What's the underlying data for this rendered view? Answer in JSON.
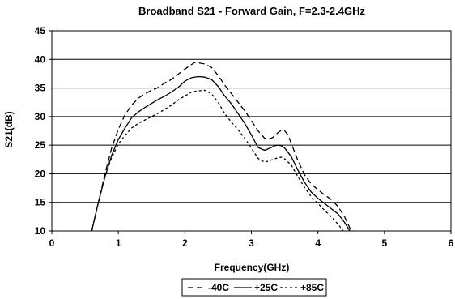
{
  "chart_data": {
    "type": "line",
    "title": "Broadband S21 - Forward Gain, F=2.3-2.4GHz",
    "xlabel": "Frequency(GHz)",
    "ylabel": "S21(dB)",
    "xlim": [
      0,
      6
    ],
    "ylim": [
      10,
      45
    ],
    "x_ticks": [
      "0",
      "1",
      "2",
      "3",
      "4",
      "5",
      "6"
    ],
    "y_ticks": [
      "10",
      "15",
      "20",
      "25",
      "30",
      "35",
      "40",
      "45"
    ],
    "grid": "horizontal",
    "legend_position": "bottom",
    "series": [
      {
        "name": "-40C",
        "line_style": "long-dash",
        "x": [
          0.6,
          0.7,
          0.8,
          0.9,
          1.0,
          1.1,
          1.2,
          1.3,
          1.4,
          1.5,
          1.6,
          1.7,
          1.8,
          1.9,
          2.0,
          2.1,
          2.15,
          2.2,
          2.3,
          2.4,
          2.5,
          2.6,
          2.7,
          2.8,
          2.9,
          3.0,
          3.1,
          3.2,
          3.3,
          3.35,
          3.4,
          3.45,
          3.5,
          3.55,
          3.6,
          3.7,
          3.8,
          3.9,
          4.0,
          4.1,
          4.2,
          4.3,
          4.4,
          4.5
        ],
        "y": [
          10,
          15,
          20,
          24.5,
          27.8,
          30.3,
          32.0,
          33.2,
          34.0,
          34.6,
          35.1,
          35.9,
          36.5,
          37.4,
          38.3,
          39.1,
          39.5,
          39.4,
          39.2,
          38.6,
          37.2,
          35.5,
          34.0,
          32.5,
          31.0,
          29.3,
          27.5,
          26.2,
          26.2,
          26.6,
          27.2,
          27.6,
          27.5,
          26.8,
          25.3,
          22.3,
          19.8,
          18.2,
          17.2,
          16.3,
          15.5,
          14.3,
          12.5,
          10
        ]
      },
      {
        "name": "+25C",
        "line_style": "solid",
        "x": [
          0.6,
          0.7,
          0.8,
          0.9,
          1.0,
          1.1,
          1.2,
          1.3,
          1.4,
          1.5,
          1.6,
          1.7,
          1.8,
          1.9,
          2.0,
          2.1,
          2.2,
          2.3,
          2.4,
          2.5,
          2.6,
          2.7,
          2.8,
          2.9,
          3.0,
          3.1,
          3.2,
          3.3,
          3.35,
          3.4,
          3.45,
          3.5,
          3.6,
          3.7,
          3.8,
          3.9,
          4.0,
          4.1,
          4.2,
          4.3,
          4.4,
          4.48
        ],
        "y": [
          10,
          15,
          19.5,
          23.2,
          26.0,
          28.0,
          29.8,
          30.8,
          31.6,
          32.3,
          33.0,
          33.6,
          34.3,
          35.1,
          36.2,
          36.8,
          37.0,
          36.9,
          36.5,
          35.3,
          33.6,
          32.2,
          30.5,
          28.8,
          26.8,
          24.6,
          24.1,
          24.6,
          24.9,
          25.0,
          24.9,
          24.5,
          23.0,
          20.6,
          18.5,
          16.8,
          15.7,
          14.8,
          13.9,
          13.0,
          11.5,
          10
        ]
      },
      {
        "name": "+85C",
        "line_style": "short-dash",
        "x": [
          0.6,
          0.7,
          0.8,
          0.9,
          1.0,
          1.1,
          1.2,
          1.3,
          1.4,
          1.5,
          1.6,
          1.7,
          1.8,
          1.9,
          2.0,
          2.1,
          2.2,
          2.3,
          2.4,
          2.5,
          2.6,
          2.7,
          2.8,
          2.9,
          3.0,
          3.1,
          3.2,
          3.3,
          3.4,
          3.45,
          3.5,
          3.6,
          3.7,
          3.8,
          3.9,
          4.0,
          4.1,
          4.2,
          4.3,
          4.38
        ],
        "y": [
          10,
          15,
          19.5,
          22.8,
          25.2,
          26.7,
          28.0,
          28.8,
          29.4,
          30.0,
          30.6,
          31.3,
          32.0,
          32.9,
          33.6,
          34.3,
          34.5,
          34.6,
          34.0,
          32.5,
          30.5,
          29.0,
          27.7,
          26.2,
          24.5,
          22.7,
          22.0,
          22.4,
          22.8,
          22.9,
          22.6,
          21.5,
          19.5,
          17.6,
          16.0,
          14.8,
          13.6,
          12.5,
          11.2,
          10
        ]
      }
    ]
  }
}
